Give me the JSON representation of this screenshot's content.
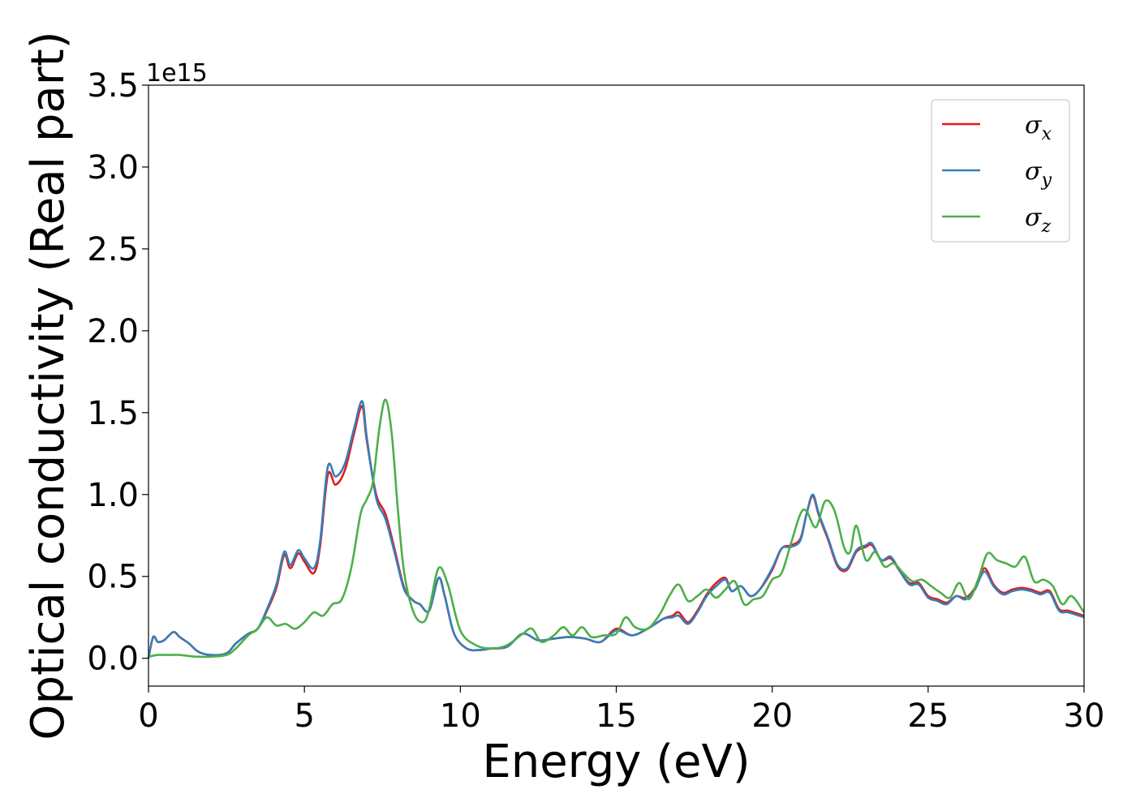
{
  "chart_data": {
    "type": "line",
    "title": "",
    "xlabel": "Energy (eV)",
    "ylabel": "Optical conductivity (Real part)",
    "offset_text": "1e15",
    "xlim": [
      0,
      30
    ],
    "ylim": [
      -0.17,
      3.5
    ],
    "xticks": [
      0,
      5,
      10,
      15,
      20,
      25,
      30
    ],
    "xtick_labels": [
      "0",
      "5",
      "10",
      "15",
      "20",
      "25",
      "30"
    ],
    "yticks": [
      0,
      0.5,
      1.0,
      1.5,
      2.0,
      2.5,
      3.0,
      3.5
    ],
    "ytick_labels": [
      "0.0",
      "0.5",
      "1.0",
      "1.5",
      "2.0",
      "2.5",
      "3.0",
      "3.5"
    ],
    "grid": false,
    "legend_position": "top-right",
    "series": [
      {
        "name": "σ",
        "subscript": "x",
        "color": "#e41a1c",
        "x": [
          0,
          0.15,
          0.3,
          0.5,
          0.8,
          1.0,
          1.3,
          1.6,
          2.0,
          2.5,
          2.8,
          3.2,
          3.5,
          3.8,
          4.1,
          4.35,
          4.55,
          4.8,
          5.0,
          5.3,
          5.5,
          5.75,
          6.0,
          6.3,
          6.6,
          6.85,
          7.0,
          7.3,
          7.6,
          7.9,
          8.2,
          8.5,
          8.7,
          9.0,
          9.3,
          9.5,
          9.8,
          10.2,
          10.6,
          11.0,
          11.5,
          12.0,
          12.5,
          13.0,
          13.5,
          14.0,
          14.5,
          15.0,
          15.5,
          16.0,
          16.5,
          16.8,
          17.0,
          17.3,
          17.6,
          17.9,
          18.2,
          18.5,
          18.7,
          19.0,
          19.3,
          19.6,
          20.0,
          20.3,
          20.6,
          20.9,
          21.1,
          21.3,
          21.5,
          21.8,
          22.1,
          22.4,
          22.7,
          23.0,
          23.2,
          23.5,
          23.8,
          24.1,
          24.4,
          24.7,
          25.0,
          25.3,
          25.6,
          25.9,
          26.2,
          26.5,
          26.8,
          27.1,
          27.4,
          27.7,
          28.0,
          28.3,
          28.6,
          28.9,
          29.2,
          29.5,
          30.0
        ],
        "y": [
          0.0,
          0.13,
          0.1,
          0.11,
          0.16,
          0.13,
          0.09,
          0.04,
          0.02,
          0.03,
          0.09,
          0.15,
          0.18,
          0.29,
          0.43,
          0.63,
          0.55,
          0.64,
          0.59,
          0.52,
          0.68,
          1.12,
          1.06,
          1.15,
          1.38,
          1.54,
          1.33,
          1.0,
          0.88,
          0.66,
          0.43,
          0.35,
          0.33,
          0.29,
          0.49,
          0.38,
          0.15,
          0.06,
          0.05,
          0.06,
          0.07,
          0.15,
          0.11,
          0.12,
          0.13,
          0.12,
          0.1,
          0.18,
          0.14,
          0.18,
          0.24,
          0.26,
          0.28,
          0.22,
          0.29,
          0.39,
          0.46,
          0.49,
          0.41,
          0.44,
          0.38,
          0.42,
          0.54,
          0.67,
          0.69,
          0.73,
          0.88,
          0.99,
          0.87,
          0.72,
          0.56,
          0.54,
          0.65,
          0.68,
          0.69,
          0.6,
          0.61,
          0.53,
          0.46,
          0.46,
          0.38,
          0.36,
          0.34,
          0.38,
          0.37,
          0.43,
          0.55,
          0.45,
          0.4,
          0.42,
          0.43,
          0.42,
          0.4,
          0.41,
          0.3,
          0.29,
          0.26
        ]
      },
      {
        "name": "σ",
        "subscript": "y",
        "color": "#377eb8",
        "x": [
          0,
          0.15,
          0.3,
          0.5,
          0.8,
          1.0,
          1.3,
          1.6,
          2.0,
          2.5,
          2.8,
          3.2,
          3.5,
          3.8,
          4.1,
          4.35,
          4.55,
          4.8,
          5.0,
          5.3,
          5.5,
          5.75,
          6.0,
          6.3,
          6.6,
          6.85,
          7.0,
          7.3,
          7.6,
          7.9,
          8.2,
          8.5,
          8.7,
          9.0,
          9.3,
          9.5,
          9.8,
          10.2,
          10.6,
          11.0,
          11.5,
          12.0,
          12.5,
          13.0,
          13.5,
          14.0,
          14.5,
          15.0,
          15.5,
          16.0,
          16.5,
          16.8,
          17.0,
          17.3,
          17.6,
          17.9,
          18.2,
          18.5,
          18.7,
          19.0,
          19.3,
          19.6,
          20.0,
          20.3,
          20.6,
          20.9,
          21.1,
          21.3,
          21.5,
          21.8,
          22.1,
          22.4,
          22.7,
          23.0,
          23.2,
          23.5,
          23.8,
          24.1,
          24.4,
          24.7,
          25.0,
          25.3,
          25.6,
          25.9,
          26.2,
          26.5,
          26.8,
          27.1,
          27.4,
          27.7,
          28.0,
          28.3,
          28.6,
          28.9,
          29.2,
          29.5,
          30.0
        ],
        "y": [
          0.0,
          0.13,
          0.1,
          0.11,
          0.16,
          0.13,
          0.09,
          0.04,
          0.02,
          0.03,
          0.09,
          0.15,
          0.18,
          0.3,
          0.45,
          0.65,
          0.57,
          0.66,
          0.61,
          0.55,
          0.71,
          1.17,
          1.11,
          1.19,
          1.41,
          1.57,
          1.35,
          0.98,
          0.85,
          0.64,
          0.42,
          0.35,
          0.33,
          0.29,
          0.49,
          0.38,
          0.15,
          0.06,
          0.05,
          0.06,
          0.07,
          0.15,
          0.11,
          0.12,
          0.13,
          0.12,
          0.1,
          0.17,
          0.14,
          0.18,
          0.24,
          0.25,
          0.26,
          0.21,
          0.28,
          0.38,
          0.44,
          0.48,
          0.41,
          0.44,
          0.38,
          0.42,
          0.55,
          0.67,
          0.68,
          0.72,
          0.88,
          1.0,
          0.88,
          0.73,
          0.57,
          0.55,
          0.66,
          0.69,
          0.7,
          0.6,
          0.62,
          0.53,
          0.45,
          0.45,
          0.37,
          0.35,
          0.33,
          0.38,
          0.36,
          0.42,
          0.53,
          0.44,
          0.39,
          0.41,
          0.42,
          0.41,
          0.39,
          0.4,
          0.29,
          0.28,
          0.25
        ]
      },
      {
        "name": "σ",
        "subscript": "z",
        "color": "#4daf4a",
        "x": [
          0,
          0.3,
          0.6,
          1.0,
          1.5,
          2.0,
          2.5,
          2.8,
          3.2,
          3.5,
          3.8,
          4.1,
          4.4,
          4.7,
          5.0,
          5.3,
          5.6,
          5.9,
          6.2,
          6.5,
          6.8,
          7.0,
          7.2,
          7.4,
          7.6,
          7.8,
          8.0,
          8.2,
          8.5,
          8.8,
          9.0,
          9.3,
          9.6,
          10.0,
          10.5,
          11.0,
          11.5,
          12.0,
          12.3,
          12.6,
          13.0,
          13.3,
          13.6,
          13.9,
          14.2,
          14.6,
          15.0,
          15.3,
          15.6,
          16.0,
          16.4,
          16.7,
          17.0,
          17.3,
          17.6,
          17.9,
          18.2,
          18.5,
          18.8,
          19.1,
          19.4,
          19.7,
          20.0,
          20.3,
          20.6,
          20.9,
          21.1,
          21.4,
          21.7,
          22.0,
          22.3,
          22.5,
          22.7,
          23.0,
          23.3,
          23.6,
          23.9,
          24.2,
          24.5,
          24.8,
          25.1,
          25.4,
          25.7,
          26.0,
          26.3,
          26.6,
          26.9,
          27.2,
          27.5,
          27.8,
          28.1,
          28.4,
          28.7,
          29.0,
          29.3,
          29.6,
          30.0
        ],
        "y": [
          0.01,
          0.02,
          0.02,
          0.02,
          0.01,
          0.01,
          0.02,
          0.06,
          0.14,
          0.18,
          0.25,
          0.2,
          0.21,
          0.18,
          0.22,
          0.28,
          0.26,
          0.33,
          0.36,
          0.55,
          0.88,
          0.97,
          1.08,
          1.4,
          1.58,
          1.37,
          0.9,
          0.52,
          0.28,
          0.22,
          0.3,
          0.55,
          0.45,
          0.17,
          0.08,
          0.06,
          0.08,
          0.15,
          0.18,
          0.1,
          0.14,
          0.19,
          0.14,
          0.19,
          0.13,
          0.14,
          0.15,
          0.25,
          0.19,
          0.18,
          0.27,
          0.38,
          0.45,
          0.35,
          0.38,
          0.42,
          0.37,
          0.42,
          0.47,
          0.33,
          0.36,
          0.38,
          0.48,
          0.52,
          0.7,
          0.88,
          0.9,
          0.8,
          0.96,
          0.9,
          0.68,
          0.65,
          0.81,
          0.6,
          0.65,
          0.56,
          0.58,
          0.52,
          0.47,
          0.48,
          0.44,
          0.4,
          0.37,
          0.46,
          0.36,
          0.48,
          0.64,
          0.6,
          0.58,
          0.56,
          0.62,
          0.47,
          0.48,
          0.44,
          0.33,
          0.38,
          0.28
        ]
      }
    ]
  }
}
